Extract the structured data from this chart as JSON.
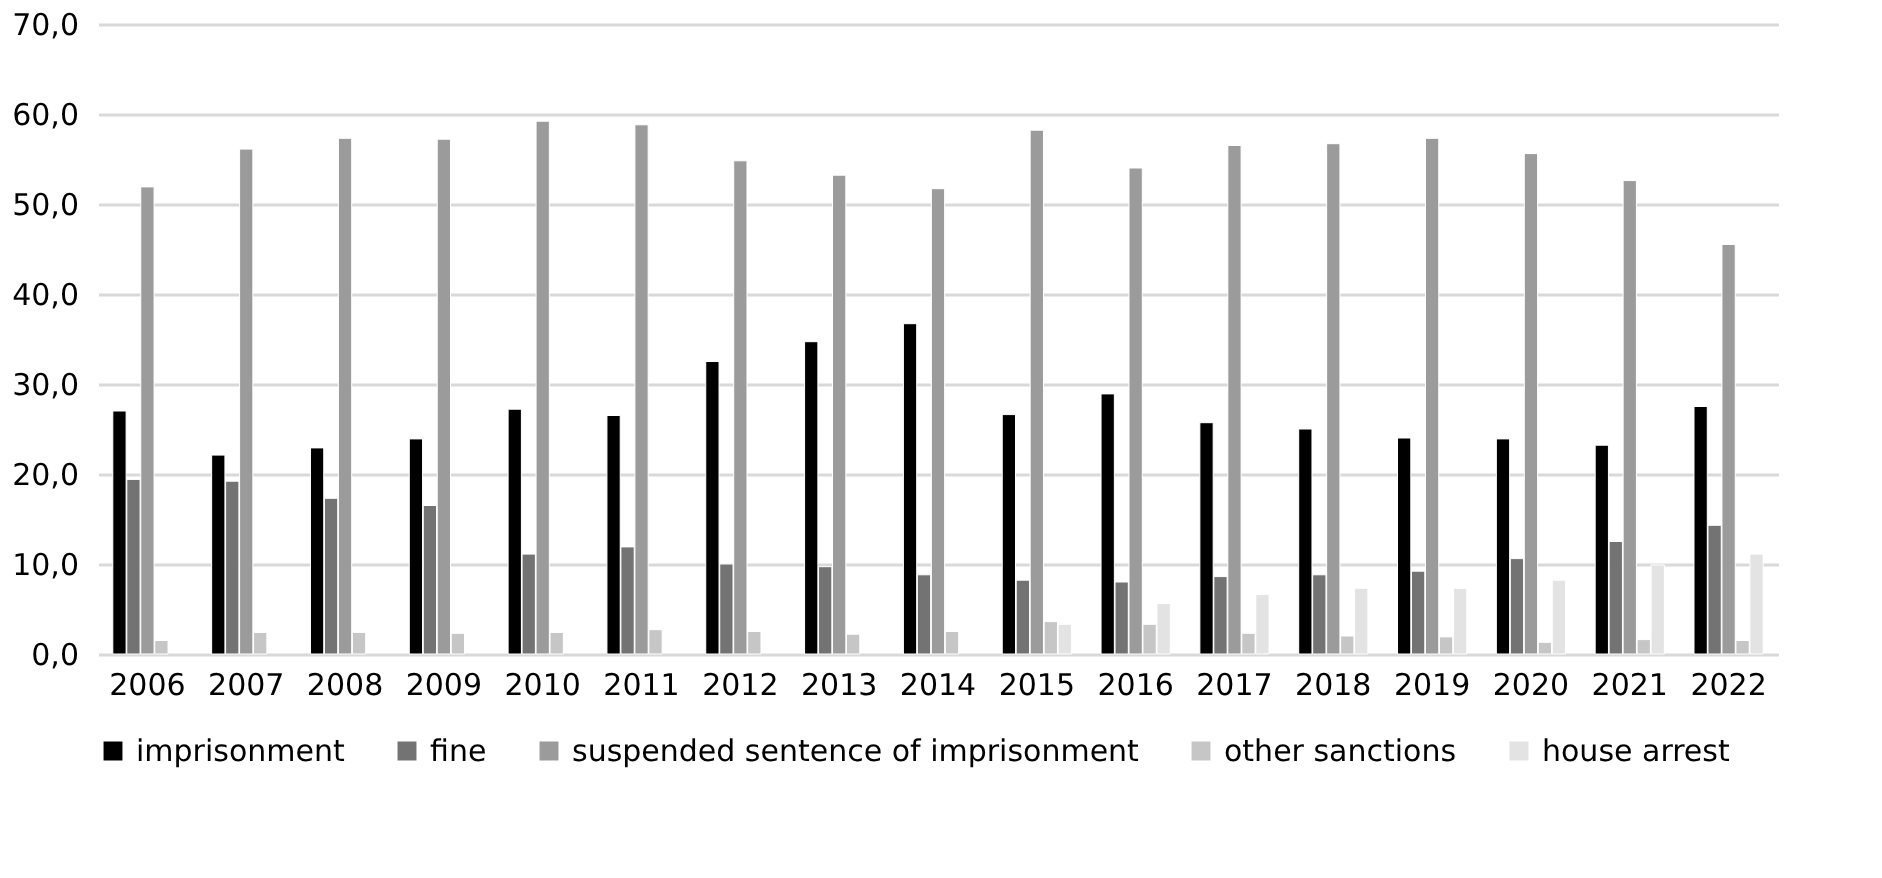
{
  "chart_data": {
    "type": "bar",
    "categories": [
      "2006",
      "2007",
      "2008",
      "2009",
      "2010",
      "2011",
      "2012",
      "2013",
      "2014",
      "2015",
      "2016",
      "2017",
      "2018",
      "2019",
      "2020",
      "2021",
      "2022"
    ],
    "series": [
      {
        "name": "imprisonment",
        "color": "#000000",
        "values": [
          27.0,
          22.1,
          22.9,
          23.9,
          27.2,
          26.5,
          32.5,
          34.7,
          36.7,
          26.6,
          28.9,
          25.7,
          25.0,
          24.0,
          23.9,
          23.2,
          27.5
        ]
      },
      {
        "name": "fine",
        "color": "#737373",
        "values": [
          19.4,
          19.2,
          17.3,
          16.5,
          11.1,
          11.9,
          10.0,
          9.7,
          8.8,
          8.2,
          8.0,
          8.6,
          8.8,
          9.2,
          10.6,
          12.5,
          14.3
        ]
      },
      {
        "name": "suspended sentence of imprisonment",
        "color": "#9b9b9b",
        "values": [
          51.9,
          56.1,
          57.3,
          57.2,
          59.2,
          58.8,
          54.8,
          53.2,
          51.7,
          58.2,
          54.0,
          56.5,
          56.7,
          57.3,
          55.6,
          52.6,
          45.5
        ]
      },
      {
        "name": "other sanctions",
        "color": "#c6c6c6",
        "values": [
          1.5,
          2.4,
          2.4,
          2.3,
          2.4,
          2.7,
          2.5,
          2.2,
          2.5,
          3.6,
          3.3,
          2.3,
          2.0,
          1.9,
          1.3,
          1.6,
          1.5
        ]
      },
      {
        "name": "house arrest",
        "color": "#e3e3e3",
        "values": [
          null,
          null,
          null,
          null,
          null,
          null,
          null,
          null,
          null,
          3.3,
          5.6,
          6.6,
          7.3,
          7.3,
          8.2,
          9.9,
          11.1
        ]
      }
    ],
    "ylim": [
      0,
      70
    ],
    "yticks": [
      {
        "value": 0,
        "label": "0,0"
      },
      {
        "value": 10,
        "label": "10,0"
      },
      {
        "value": 20,
        "label": "20,0"
      },
      {
        "value": 30,
        "label": "30,0"
      },
      {
        "value": 40,
        "label": "40,0"
      },
      {
        "value": 50,
        "label": "50,0"
      },
      {
        "value": 60,
        "label": "60,0"
      },
      {
        "value": 70,
        "label": "70,0"
      }
    ],
    "grid": "y",
    "legend": "bottom"
  }
}
